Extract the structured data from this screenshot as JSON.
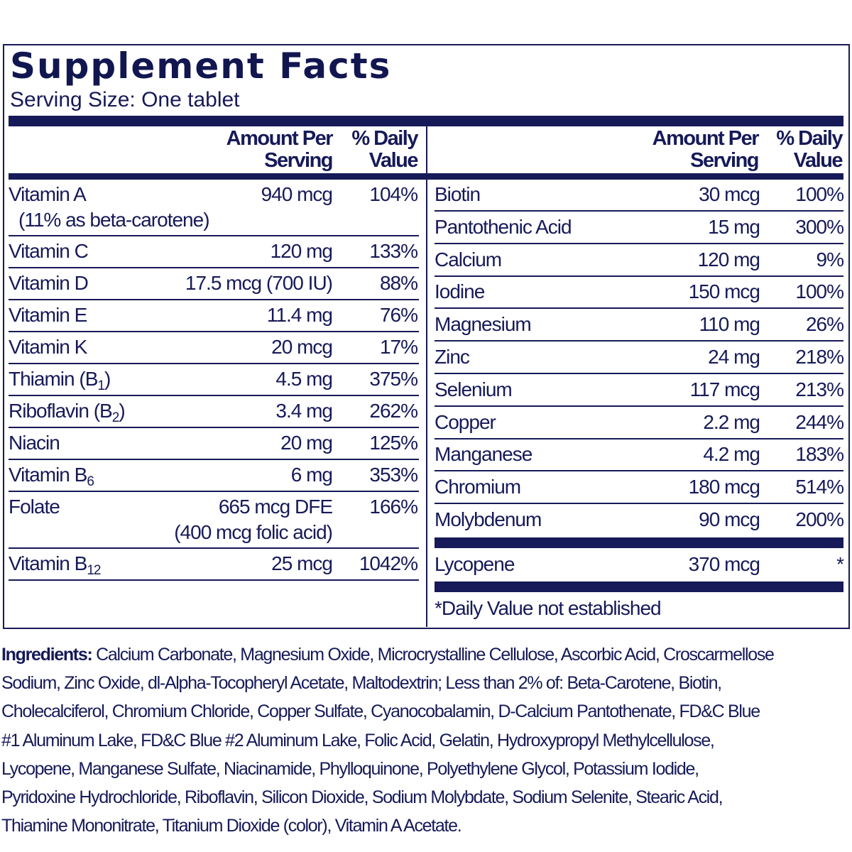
{
  "title": "Supplement Facts",
  "serving_size": "Serving Size: One tablet",
  "header": {
    "amount_line1": "Amount Per",
    "amount_line2": "Serving",
    "dv_line1": "% Daily",
    "dv_line2": "Value"
  },
  "left": [
    {
      "name": "Vitamin A",
      "sub": "",
      "amount": "940 mcg",
      "dv": "104%",
      "note": "(11% as beta-carotene)"
    },
    {
      "name": "Vitamin C",
      "sub": "",
      "amount": "120 mg",
      "dv": "133%"
    },
    {
      "name": "Vitamin D",
      "sub": "",
      "amount": "17.5 mcg (700 IU)",
      "dv": "88%"
    },
    {
      "name": "Vitamin E",
      "sub": "",
      "amount": "11.4 mg",
      "dv": "76%"
    },
    {
      "name": "Vitamin K",
      "sub": "",
      "amount": "20 mcg",
      "dv": "17%"
    },
    {
      "name": "Thiamin (B",
      "sub": "1",
      "after": ")",
      "amount": "4.5 mg",
      "dv": "375%"
    },
    {
      "name": "Riboflavin (B",
      "sub": "2",
      "after": ")",
      "amount": "3.4 mg",
      "dv": "262%"
    },
    {
      "name": "Niacin",
      "sub": "",
      "amount": "20 mg",
      "dv": "125%"
    },
    {
      "name": "Vitamin B",
      "sub": "6",
      "amount": "6 mg",
      "dv": "353%"
    },
    {
      "name": "Folate",
      "sub": "",
      "amount": "665 mcg DFE",
      "dv": "166%",
      "amount_note": "(400 mcg folic acid)"
    },
    {
      "name": "Vitamin B",
      "sub": "12",
      "amount": "25 mcg",
      "dv": "1042%"
    }
  ],
  "right": [
    {
      "name": "Biotin",
      "amount": "30 mcg",
      "dv": "100%"
    },
    {
      "name": "Pantothenic Acid",
      "amount": "15 mg",
      "dv": "300%"
    },
    {
      "name": "Calcium",
      "amount": "120 mg",
      "dv": "9%"
    },
    {
      "name": "Iodine",
      "amount": "150 mcg",
      "dv": "100%"
    },
    {
      "name": "Magnesium",
      "amount": "110 mg",
      "dv": "26%"
    },
    {
      "name": "Zinc",
      "amount": "24 mg",
      "dv": "218%"
    },
    {
      "name": "Selenium",
      "amount": "117 mcg",
      "dv": "213%"
    },
    {
      "name": "Copper",
      "amount": "2.2 mg",
      "dv": "244%"
    },
    {
      "name": "Manganese",
      "amount": "4.2 mg",
      "dv": "183%"
    },
    {
      "name": "Chromium",
      "amount": "180 mcg",
      "dv": "514%"
    },
    {
      "name": "Molybdenum",
      "amount": "90 mcg",
      "dv": "200%"
    }
  ],
  "other": {
    "name": "Lycopene",
    "amount": "370 mcg",
    "dv": "*"
  },
  "footnote": "*Daily Value not established",
  "ingredients": {
    "label": "Ingredients:",
    "text": "Calcium Carbonate, Magnesium Oxide, Microcrystalline Cellulose, Ascorbic Acid, Croscarmellose Sodium, Zinc Oxide, dl-Alpha-Tocopheryl Acetate, Maltodextrin; Less than 2% of: Beta-Carotene, Biotin, Cholecalciferol, Chromium Chloride, Copper Sulfate, Cyanocobalamin, D-Calcium Pantothenate, FD&C Blue #1 Aluminum Lake, FD&C Blue #2 Aluminum Lake, Folic Acid, Gelatin, Hydroxypropyl Methylcellulose, Lycopene, Manganese Sulfate, Niacinamide, Phylloquinone, Polyethylene Glycol, Potassium Iodide, Pyridoxine Hydrochloride, Riboflavin, Silicon Dioxide, Sodium Molybdate, Sodium Selenite, Stearic Acid, Thiamine Mononitrate, Titanium Dioxide (color), Vitamin A Acetate."
  },
  "colors": {
    "ink": "#161a58"
  }
}
